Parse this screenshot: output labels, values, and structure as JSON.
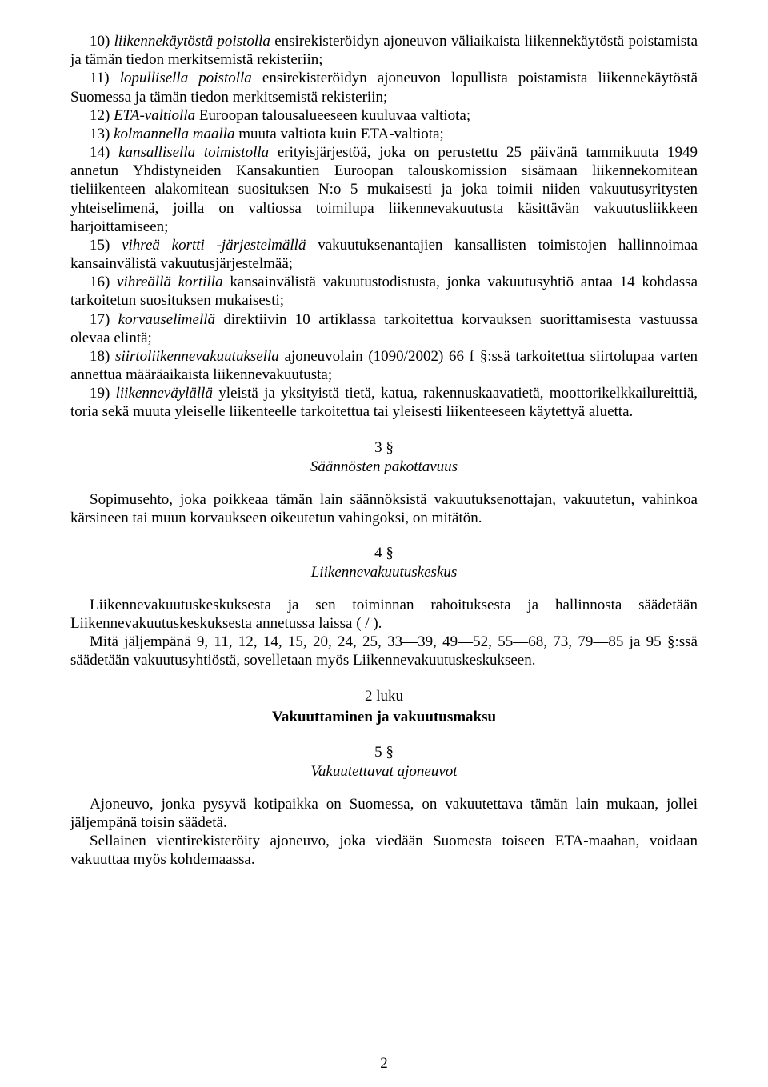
{
  "p10": "10) liikennekäytöstä poistolla ensirekisteröidyn ajoneuvon väliaikaista liikennekäytöstä poistamista ja tämän tiedon merkitsemistä rekisteriin;",
  "p11": "11) lopullisella poistolla ensirekisteröidyn ajoneuvon lopullista poistamista liikennekäytöstä Suomessa ja tämän tiedon merkitsemistä rekisteriin;",
  "p12": "12) ETA-valtiolla Euroopan talousalueeseen kuuluvaa valtiota;",
  "p13": "13) kolmannella maalla muuta valtiota kuin ETA-valtiota;",
  "p14": "14) kansallisella toimistolla erityisjärjestöä, joka on perustettu 25 päivänä tammikuuta 1949 annetun Yhdistyneiden Kansakuntien Euroopan talouskomission sisämaan liikennekomitean tieliikenteen alakomitean suosituksen N:o 5 mukaisesti ja joka toimii niiden vakuutusyritysten yhteiselimenä, joilla on valtiossa toimilupa liikennevakuutusta käsittävän vakuutusliikkeen harjoittamiseen;",
  "p15": "15) vihreä kortti -järjestelmällä vakuutuksenantajien kansallisten toimistojen hallinnoimaa kansainvälistä vakuutusjärjestelmää;",
  "p16": "16) vihreällä kortilla kansainvälistä vakuutustodistusta, jonka vakuutusyhtiö antaa 14 kohdassa tarkoitetun suosituksen mukaisesti;",
  "p17": "17) korvauselimellä direktiivin 10 artiklassa tarkoitettua korvauksen suorittamisesta vastuussa olevaa elintä;",
  "p18": "18) siirtoliikennevakuutuksella ajoneuvolain (1090/2002) 66 f §:ssä tarkoitettua siirtolupaa varten annettua määräaikaista liikennevakuutusta;",
  "p19": "19) liikenneväylällä yleistä ja yksityistä tietä, katua, rakennuskaavatietä, moottorikelkkailureittiä, toria sekä muuta yleiselle liikenteelle tarkoitettua tai yleisesti liikenteeseen käytettyä aluetta.",
  "s3num": "3 §",
  "s3title": "Säännösten pakottavuus",
  "s3body": "Sopimusehto, joka poikkeaa tämän lain säännöksistä vakuutuksenottajan, vakuutetun, vahinkoa kärsineen tai muun korvaukseen oikeutetun vahingoksi, on mitätön.",
  "s4num": "4 §",
  "s4title": "Liikennevakuutuskeskus",
  "s4body1": "Liikennevakuutuskeskuksesta ja sen toiminnan rahoituksesta ja hallinnosta säädetään Liikennevakuutuskeskuksesta annetussa laissa (    /    ).",
  "s4body2": "Mitä jäljempänä 9, 11, 12, 14, 15, 20, 24, 25, 33—39, 49—52, 55—68, 73, 79—85 ja 95 §:ssä säädetään vakuutusyhtiöstä, sovelletaan myös Liikennevakuutuskeskukseen.",
  "chapnum": "2 luku",
  "chaptitle": "Vakuuttaminen ja vakuutusmaksu",
  "s5num": "5 §",
  "s5title": "Vakuutettavat ajoneuvot",
  "s5body1": "Ajoneuvo, jonka pysyvä kotipaikka on Suomessa, on vakuutettava tämän lain mukaan, jollei jäljempänä toisin säädetä.",
  "s5body2": "Sellainen vientirekisteröity ajoneuvo, joka viedään Suomesta toiseen ETA-maahan, voidaan vakuuttaa myös kohdemaassa.",
  "pagenum": "2",
  "italic_terms": {
    "t10": "liikennekäytöstä poistolla",
    "t11": "lopullisella poistolla",
    "t12": "ETA-valtiolla",
    "t13": "kolmannella maalla",
    "t14": "kansallisella toimistolla",
    "t15": "vihreä kortti -järjestelmällä",
    "t16": "vihreällä kortilla",
    "t17": "korvauselimellä",
    "t18": "siirtoliikennevakuutuksella",
    "t19": "liikenneväylällä"
  }
}
